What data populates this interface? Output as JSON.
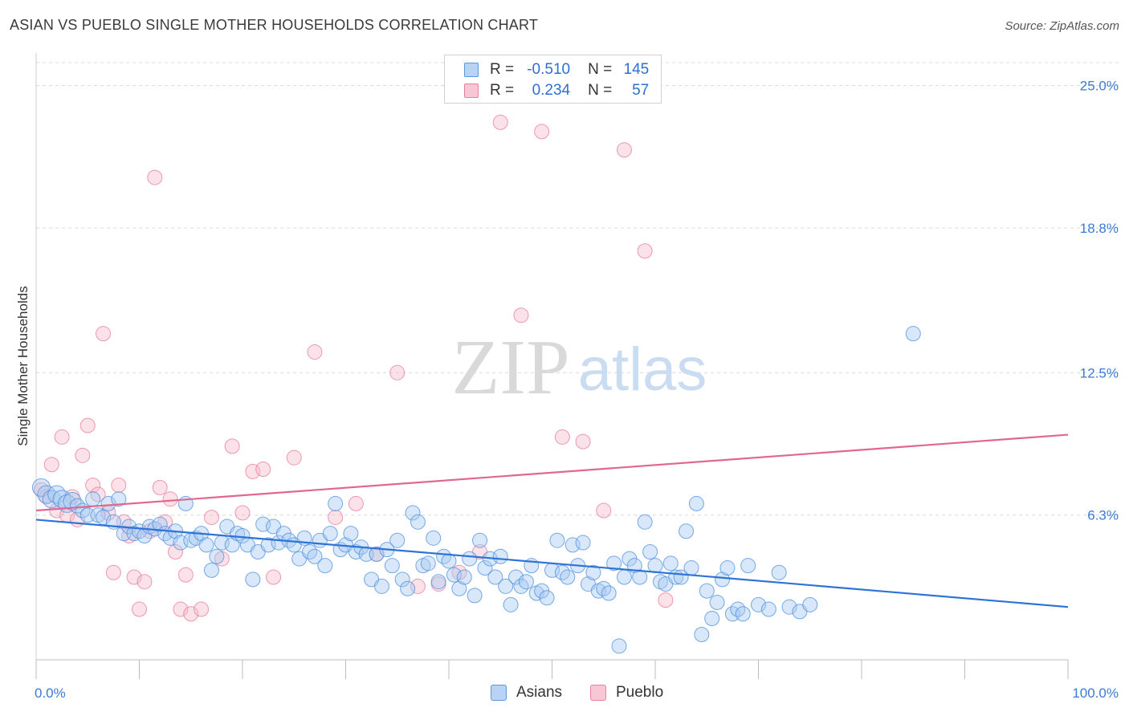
{
  "header": {
    "title": "ASIAN VS PUEBLO SINGLE MOTHER HOUSEHOLDS CORRELATION CHART",
    "source": "Source: ZipAtlas.com"
  },
  "watermark": {
    "zip": "ZIP",
    "atlas": "atlas"
  },
  "colors": {
    "asian": "#4a8fe0",
    "asian_fill": "#a9c9f2",
    "pueblo": "#e8799c",
    "pueblo_fill": "#f6bccd",
    "asian_line": "#2e73d6",
    "pueblo_line": "#e06890",
    "tick_text": "#3a7bd5",
    "grid": "#d8d8d8"
  },
  "legend": {
    "rows": [
      {
        "r_label": "R =",
        "r_value": "-0.510",
        "n_label": "N =",
        "n_value": "145"
      },
      {
        "r_label": "R =",
        "r_value": "0.234",
        "n_label": "N =",
        "n_value": "57"
      }
    ]
  },
  "bottom_legend": {
    "asian": "Asians",
    "pueblo": "Pueblo"
  },
  "chart_data": {
    "type": "scatter",
    "title": "ASIAN VS PUEBLO SINGLE MOTHER HOUSEHOLDS CORRELATION CHART",
    "xlabel": "",
    "ylabel": "Single Mother Households",
    "xlim": [
      0,
      100
    ],
    "ylim": [
      0,
      26.0
    ],
    "x_tick_labels": [
      "0.0%",
      "100.0%"
    ],
    "y_ticks": [
      6.3,
      12.5,
      18.8,
      25.0
    ],
    "y_tick_labels": [
      "6.3%",
      "12.5%",
      "18.8%",
      "25.0%"
    ],
    "grid": true,
    "legend_position": "top-center",
    "series": [
      {
        "name": "Asians",
        "r": -0.51,
        "n": 145,
        "trend": {
          "x": [
            0,
            100
          ],
          "y": [
            6.1,
            2.3
          ]
        },
        "points": [
          [
            0.5,
            7.5
          ],
          [
            1.0,
            7.2
          ],
          [
            1.5,
            7.0
          ],
          [
            2.0,
            7.2
          ],
          [
            2.5,
            7.0
          ],
          [
            3.0,
            6.8
          ],
          [
            3.5,
            6.9
          ],
          [
            4.0,
            6.7
          ],
          [
            4.5,
            6.5
          ],
          [
            5.0,
            6.3
          ],
          [
            5.5,
            7.0
          ],
          [
            6.0,
            6.3
          ],
          [
            6.5,
            6.2
          ],
          [
            7.0,
            6.8
          ],
          [
            7.5,
            6.0
          ],
          [
            8.0,
            7.0
          ],
          [
            8.5,
            5.5
          ],
          [
            9.0,
            5.8
          ],
          [
            9.5,
            5.5
          ],
          [
            10.0,
            5.6
          ],
          [
            10.5,
            5.4
          ],
          [
            11.0,
            5.8
          ],
          [
            11.5,
            5.7
          ],
          [
            12.0,
            5.9
          ],
          [
            12.5,
            5.5
          ],
          [
            13.0,
            5.3
          ],
          [
            13.5,
            5.6
          ],
          [
            14.0,
            5.1
          ],
          [
            14.5,
            6.8
          ],
          [
            15.0,
            5.2
          ],
          [
            15.5,
            5.3
          ],
          [
            16.0,
            5.5
          ],
          [
            16.5,
            5.0
          ],
          [
            17.0,
            3.9
          ],
          [
            17.5,
            4.5
          ],
          [
            18.0,
            5.1
          ],
          [
            18.5,
            5.8
          ],
          [
            19.0,
            5.0
          ],
          [
            19.5,
            5.5
          ],
          [
            20.0,
            5.4
          ],
          [
            20.5,
            5.0
          ],
          [
            21.0,
            3.5
          ],
          [
            21.5,
            4.7
          ],
          [
            22.0,
            5.9
          ],
          [
            22.5,
            5.0
          ],
          [
            23.0,
            5.8
          ],
          [
            23.5,
            5.1
          ],
          [
            24.0,
            5.5
          ],
          [
            24.5,
            5.2
          ],
          [
            25.0,
            5.0
          ],
          [
            25.5,
            4.4
          ],
          [
            26.0,
            5.3
          ],
          [
            26.5,
            4.7
          ],
          [
            27.0,
            4.5
          ],
          [
            27.5,
            5.2
          ],
          [
            28.0,
            4.1
          ],
          [
            28.5,
            5.5
          ],
          [
            29.0,
            6.8
          ],
          [
            29.5,
            4.8
          ],
          [
            30.0,
            5.0
          ],
          [
            30.5,
            5.5
          ],
          [
            31.0,
            4.7
          ],
          [
            31.5,
            4.9
          ],
          [
            32.0,
            4.6
          ],
          [
            32.5,
            3.5
          ],
          [
            33.0,
            4.6
          ],
          [
            33.5,
            3.2
          ],
          [
            34.0,
            4.8
          ],
          [
            34.5,
            4.1
          ],
          [
            35.0,
            5.2
          ],
          [
            35.5,
            3.5
          ],
          [
            36.0,
            3.1
          ],
          [
            36.5,
            6.4
          ],
          [
            37.0,
            6.0
          ],
          [
            37.5,
            4.1
          ],
          [
            38.0,
            4.2
          ],
          [
            38.5,
            5.3
          ],
          [
            39.0,
            3.4
          ],
          [
            39.5,
            4.5
          ],
          [
            40.0,
            4.3
          ],
          [
            40.5,
            3.7
          ],
          [
            41.0,
            3.1
          ],
          [
            41.5,
            3.6
          ],
          [
            42.0,
            4.4
          ],
          [
            42.5,
            2.8
          ],
          [
            43.0,
            5.2
          ],
          [
            43.5,
            4.0
          ],
          [
            44.0,
            4.4
          ],
          [
            44.5,
            3.6
          ],
          [
            45.0,
            4.5
          ],
          [
            45.5,
            3.2
          ],
          [
            46.0,
            2.4
          ],
          [
            46.5,
            3.6
          ],
          [
            47.0,
            3.2
          ],
          [
            47.5,
            3.4
          ],
          [
            48.0,
            4.1
          ],
          [
            48.5,
            2.9
          ],
          [
            49.0,
            3.0
          ],
          [
            49.5,
            2.7
          ],
          [
            50.0,
            3.9
          ],
          [
            50.5,
            5.2
          ],
          [
            51.0,
            3.8
          ],
          [
            51.5,
            3.6
          ],
          [
            52.0,
            5.0
          ],
          [
            52.5,
            4.1
          ],
          [
            53.0,
            5.1
          ],
          [
            53.5,
            3.3
          ],
          [
            54.0,
            3.8
          ],
          [
            54.5,
            3.0
          ],
          [
            55.0,
            3.1
          ],
          [
            55.5,
            2.9
          ],
          [
            56.0,
            4.2
          ],
          [
            56.5,
            0.6
          ],
          [
            57.0,
            3.6
          ],
          [
            57.5,
            4.4
          ],
          [
            58.0,
            4.1
          ],
          [
            58.5,
            3.6
          ],
          [
            59.0,
            6.0
          ],
          [
            59.5,
            4.7
          ],
          [
            60.0,
            4.1
          ],
          [
            60.5,
            3.4
          ],
          [
            61.0,
            3.3
          ],
          [
            61.5,
            4.2
          ],
          [
            62.0,
            3.6
          ],
          [
            62.5,
            3.6
          ],
          [
            63.0,
            5.6
          ],
          [
            63.5,
            4.0
          ],
          [
            64.0,
            6.8
          ],
          [
            64.5,
            1.1
          ],
          [
            65.0,
            3.0
          ],
          [
            65.5,
            1.8
          ],
          [
            66.0,
            2.5
          ],
          [
            66.5,
            3.5
          ],
          [
            67.0,
            4.0
          ],
          [
            67.5,
            2.0
          ],
          [
            68.0,
            2.2
          ],
          [
            68.5,
            2.0
          ],
          [
            69.0,
            4.1
          ],
          [
            70.0,
            2.4
          ],
          [
            71.0,
            2.2
          ],
          [
            72.0,
            3.8
          ],
          [
            73.0,
            2.3
          ],
          [
            74.0,
            2.1
          ],
          [
            75.0,
            2.4
          ],
          [
            85.0,
            14.2
          ]
        ]
      },
      {
        "name": "Pueblo",
        "r": 0.234,
        "n": 57,
        "trend": {
          "x": [
            0,
            100
          ],
          "y": [
            6.5,
            9.8
          ]
        },
        "points": [
          [
            0.5,
            7.4
          ],
          [
            1.0,
            7.1
          ],
          [
            1.5,
            8.5
          ],
          [
            2.0,
            6.5
          ],
          [
            2.5,
            9.7
          ],
          [
            3.0,
            6.3
          ],
          [
            3.5,
            7.1
          ],
          [
            4.0,
            6.1
          ],
          [
            4.5,
            8.9
          ],
          [
            5.0,
            10.2
          ],
          [
            5.5,
            7.6
          ],
          [
            6.0,
            7.2
          ],
          [
            6.5,
            14.2
          ],
          [
            7.0,
            6.4
          ],
          [
            7.5,
            3.8
          ],
          [
            8.0,
            7.6
          ],
          [
            8.5,
            6.0
          ],
          [
            9.0,
            5.4
          ],
          [
            9.5,
            3.6
          ],
          [
            10.0,
            2.2
          ],
          [
            10.5,
            3.4
          ],
          [
            11.0,
            5.6
          ],
          [
            11.5,
            21.0
          ],
          [
            12.0,
            7.5
          ],
          [
            12.5,
            6.0
          ],
          [
            13.0,
            7.0
          ],
          [
            13.5,
            4.7
          ],
          [
            14.0,
            2.2
          ],
          [
            14.5,
            3.7
          ],
          [
            15.0,
            2.0
          ],
          [
            16.0,
            2.2
          ],
          [
            17.0,
            6.2
          ],
          [
            18.0,
            4.4
          ],
          [
            19.0,
            9.3
          ],
          [
            20.0,
            6.4
          ],
          [
            21.0,
            8.2
          ],
          [
            22.0,
            8.3
          ],
          [
            23.0,
            3.6
          ],
          [
            25.0,
            8.8
          ],
          [
            27.0,
            13.4
          ],
          [
            29.0,
            6.2
          ],
          [
            31.0,
            6.8
          ],
          [
            33.0,
            4.6
          ],
          [
            35.0,
            12.5
          ],
          [
            37.0,
            3.2
          ],
          [
            39.0,
            3.3
          ],
          [
            41.0,
            3.8
          ],
          [
            43.0,
            4.7
          ],
          [
            45.0,
            23.4
          ],
          [
            47.0,
            15.0
          ],
          [
            49.0,
            23.0
          ],
          [
            51.0,
            9.7
          ],
          [
            53.0,
            9.5
          ],
          [
            55.0,
            6.5
          ],
          [
            57.0,
            22.2
          ],
          [
            59.0,
            17.8
          ],
          [
            61.0,
            2.6
          ]
        ]
      }
    ]
  }
}
